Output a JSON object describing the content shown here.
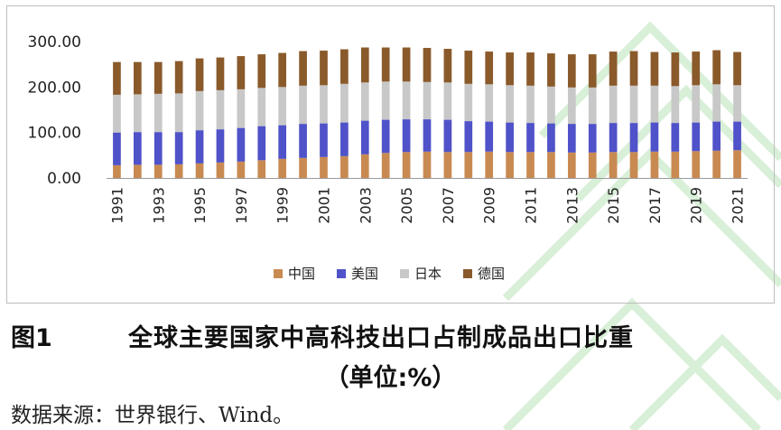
{
  "chart_data": {
    "type": "bar",
    "stacked": true,
    "title": "全球主要国家中高科技出口占制成品出口比重",
    "xlabel": "",
    "ylabel": "",
    "ylim": [
      0,
      300
    ],
    "yticks": [
      "0.00",
      "100.00",
      "200.00",
      "300.00"
    ],
    "legend_position": "bottom",
    "categories": [
      "1991",
      "1992",
      "1993",
      "1994",
      "1995",
      "1996",
      "1997",
      "1998",
      "1999",
      "2000",
      "2001",
      "2002",
      "2003",
      "2004",
      "2005",
      "2006",
      "2007",
      "2008",
      "2009",
      "2010",
      "2011",
      "2012",
      "2013",
      "2014",
      "2015",
      "2016",
      "2017",
      "2018",
      "2019",
      "2020",
      "2021"
    ],
    "tick_labels": [
      "1991",
      "1993",
      "1995",
      "1997",
      "1999",
      "2001",
      "2003",
      "2005",
      "2007",
      "2009",
      "2011",
      "2013",
      "2015",
      "2017",
      "2019",
      "2021"
    ],
    "series": [
      {
        "name": "中国",
        "color": "#c98a52",
        "values": [
          28,
          29,
          29,
          30,
          32,
          34,
          36,
          39,
          42,
          44,
          46,
          48,
          52,
          55,
          57,
          58,
          57,
          57,
          58,
          57,
          57,
          57,
          56,
          56,
          57,
          57,
          58,
          58,
          59,
          60,
          61
        ]
      },
      {
        "name": "美国",
        "color": "#4f52c8",
        "values": [
          72,
          72,
          72,
          71,
          73,
          73,
          74,
          75,
          74,
          75,
          74,
          74,
          74,
          73,
          72,
          71,
          71,
          68,
          66,
          65,
          64,
          63,
          63,
          63,
          64,
          64,
          64,
          63,
          63,
          64,
          63
        ]
      },
      {
        "name": "日本",
        "color": "#c8c8c8",
        "values": [
          83,
          83,
          84,
          85,
          86,
          86,
          85,
          84,
          84,
          84,
          84,
          85,
          84,
          84,
          83,
          82,
          82,
          82,
          82,
          82,
          82,
          81,
          80,
          80,
          82,
          82,
          81,
          81,
          82,
          82,
          80
        ]
      },
      {
        "name": "德国",
        "color": "#8a5a2b",
        "values": [
          72,
          71,
          70,
          71,
          72,
          72,
          73,
          74,
          75,
          76,
          76,
          76,
          77,
          75,
          75,
          75,
          74,
          73,
          72,
          72,
          73,
          73,
          73,
          73,
          75,
          76,
          74,
          74,
          74,
          75,
          73
        ]
      }
    ]
  },
  "caption": {
    "fig_no": "图1",
    "title": "全球主要国家中高科技出口占制成品出口比重",
    "unit": "（单位:%）"
  },
  "source": "数据来源：世界银行、Wind。"
}
